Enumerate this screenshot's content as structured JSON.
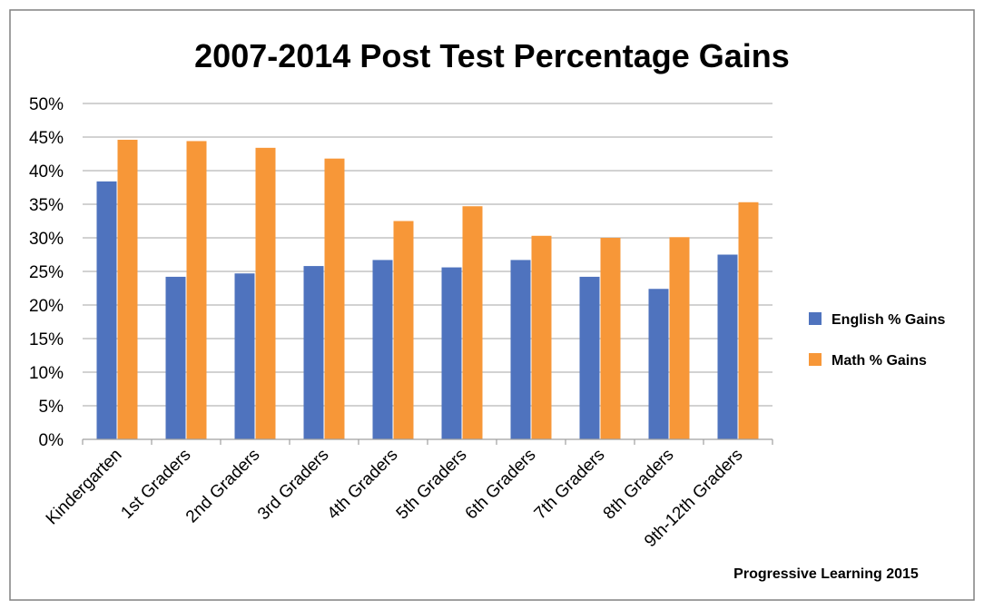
{
  "chart_data": {
    "type": "bar",
    "title": "2007-2014 Post Test Percentage Gains",
    "categories": [
      "Kindergarten",
      "1st Graders",
      "2nd Graders",
      "3rd Graders",
      "4th Graders",
      "5th Graders",
      "6th Graders",
      "7th Graders",
      "8th Graders",
      "9th-12th  Graders"
    ],
    "series": [
      {
        "name": "English % Gains",
        "color": "#4f73be",
        "values": [
          38.4,
          24.2,
          24.7,
          25.8,
          26.7,
          25.6,
          26.7,
          24.2,
          22.4,
          27.5
        ]
      },
      {
        "name": "Math % Gains",
        "color": "#f79738",
        "values": [
          44.6,
          44.4,
          43.4,
          41.8,
          32.5,
          34.7,
          30.3,
          30.0,
          30.1,
          35.3
        ]
      }
    ],
    "yticks": [
      "0%",
      "5%",
      "10%",
      "15%",
      "20%",
      "25%",
      "30%",
      "35%",
      "40%",
      "45%",
      "50%"
    ],
    "ylim": [
      0,
      50
    ],
    "grid": true,
    "legend_position": "right",
    "xlabel": "",
    "ylabel": "",
    "annotation": "Progressive Learning 2015"
  }
}
